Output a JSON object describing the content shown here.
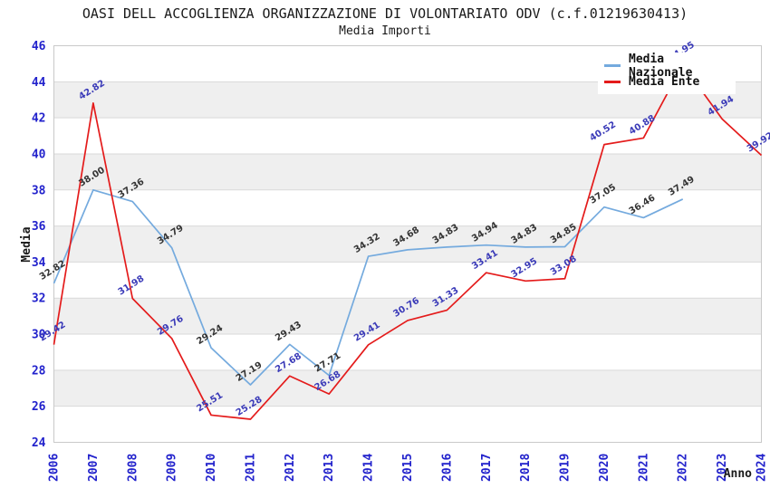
{
  "title": "OASI DELL ACCOGLIENZA ORGANIZZAZIONE DI VOLONTARIATO ODV (c.f.01219630413)",
  "subtitle": "Media Importi",
  "legend": [
    {
      "label": "Media Nazionale",
      "color": "#74aade"
    },
    {
      "label": "Media Ente",
      "color": "#e41b1b"
    }
  ],
  "colors": {
    "tick_label": "#2222cc",
    "band_gray": "#efefef",
    "gridline": "#d9d9d9",
    "plot_border": "#c9c9c9"
  },
  "chart_data": {
    "type": "line",
    "title": "Media Importi",
    "xlabel": "Anno",
    "ylabel": "Media",
    "ylim": [
      24,
      46
    ],
    "ytick_step": 2,
    "grid": "horizontal-gridlines-with-alternating-bands",
    "legend_position": "top-right-inside",
    "categories": [
      "2006",
      "2007",
      "2008",
      "2009",
      "2010",
      "2011",
      "2012",
      "2013",
      "2014",
      "2015",
      "2016",
      "2017",
      "2018",
      "2019",
      "2020",
      "2021",
      "2022",
      "2023",
      "2024"
    ],
    "series": [
      {
        "id": "media-nazionale",
        "name": "Media Nazionale",
        "color": "#74aade",
        "label_color": "#333333",
        "values": [
          32.82,
          38.0,
          37.36,
          34.79,
          29.24,
          27.19,
          29.43,
          27.71,
          34.32,
          34.68,
          34.83,
          34.94,
          34.83,
          34.85,
          37.05,
          36.46,
          37.49,
          null,
          null
        ]
      },
      {
        "id": "media-ente",
        "name": "Media Ente",
        "color": "#e41b1b",
        "label_color": "#3a3ab8",
        "values": [
          29.42,
          42.82,
          31.98,
          29.76,
          25.51,
          25.28,
          27.68,
          26.68,
          29.41,
          30.76,
          31.33,
          33.41,
          32.95,
          33.08,
          40.52,
          40.88,
          44.95,
          41.94,
          39.92
        ],
        "note": "2022 value label is covered by the legend box in the screenshot; 44.95 estimated from line position"
      }
    ]
  }
}
